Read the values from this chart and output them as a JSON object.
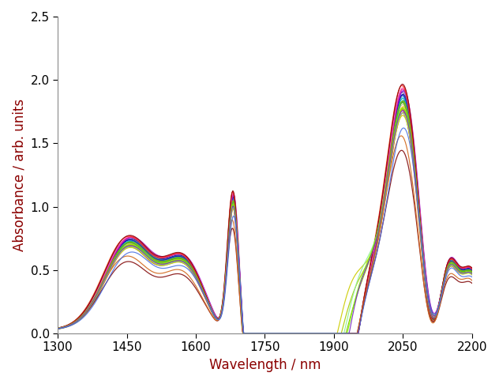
{
  "xlabel": "Wavelength / nm",
  "ylabel": "Absorbance / arb. units",
  "xlabel_color": "#8B0000",
  "ylabel_color": "#8B0000",
  "xlim": [
    1300,
    2200
  ],
  "ylim": [
    0,
    2.5
  ],
  "xticks": [
    1300,
    1450,
    1600,
    1750,
    1900,
    2050,
    2200
  ],
  "yticks": [
    0,
    0.5,
    1.0,
    1.5,
    2.0,
    2.5
  ],
  "n_spectra": 32,
  "figsize": [
    6.32,
    4.86
  ],
  "dpi": 100,
  "background_color": "#ffffff",
  "tick_label_fontsize": 11,
  "axis_label_fontsize": 12,
  "colors": [
    "#8B1A1A",
    "#B22222",
    "#CD5C5C",
    "#D2691E",
    "#A0522D",
    "#FF8C00",
    "#FFA500",
    "#FFD700",
    "#DAA520",
    "#BDB76B",
    "#9ACD32",
    "#6B8E23",
    "#32CD32",
    "#228B22",
    "#008000",
    "#20B2AA",
    "#008B8B",
    "#00CED1",
    "#4682B4",
    "#1E90FF",
    "#0000CD",
    "#00008B",
    "#483D8B",
    "#6A5ACD",
    "#8A2BE2",
    "#9400D3",
    "#C71585",
    "#FF1493",
    "#FF69B4",
    "#FF4500",
    "#DC143C",
    "#800000"
  ],
  "outlier_colors_yellow": [
    "#CCCC00",
    "#AACC00",
    "#88BB00"
  ],
  "outlier_colors_green": [
    "#90EE90",
    "#7CFC00"
  ],
  "outlier_color_purple": "#7B2FBE",
  "outlier_color_blue": "#4169E1"
}
